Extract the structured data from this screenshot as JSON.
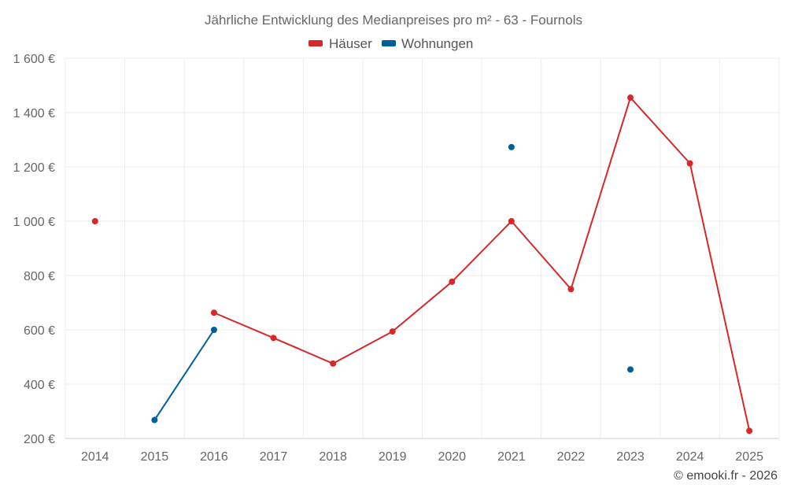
{
  "chart_data": {
    "type": "line",
    "title": "Jährliche Entwicklung des Medianpreises pro m² - 63 - Fournols",
    "credit": "© emooki.fr - 2026",
    "categories": [
      "2014",
      "2015",
      "2016",
      "2017",
      "2018",
      "2019",
      "2020",
      "2021",
      "2022",
      "2023",
      "2024",
      "2025"
    ],
    "y_ticks": [
      200,
      400,
      600,
      800,
      1000,
      1200,
      1400,
      1600
    ],
    "y_tick_labels": [
      "200 €",
      "400 €",
      "600 €",
      "800 €",
      "1 000 €",
      "1 200 €",
      "1 400 €",
      "1 600 €"
    ],
    "ylim": [
      200,
      1600
    ],
    "grid": true,
    "legend_position": "top-center",
    "series": [
      {
        "name": "Häuser",
        "color": "#d62828",
        "values": [
          1000,
          null,
          663,
          570,
          476,
          594,
          777,
          1000,
          750,
          1455,
          1213,
          228
        ]
      },
      {
        "name": "Wohnungen",
        "color": "#005f99",
        "values": [
          null,
          268,
          600,
          null,
          null,
          null,
          null,
          1273,
          null,
          454,
          null,
          null
        ]
      }
    ]
  }
}
